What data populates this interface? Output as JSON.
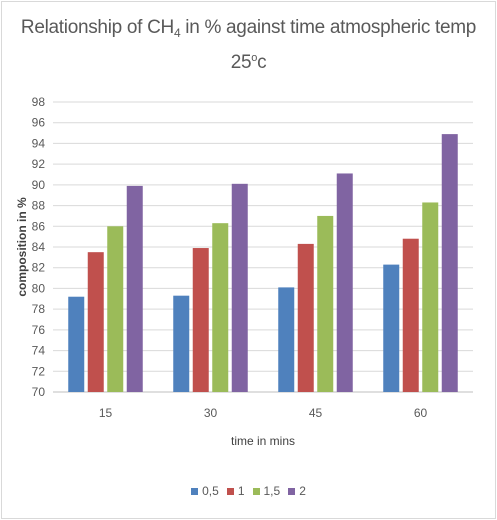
{
  "chart_data": {
    "type": "bar",
    "title_line1_pre": "Relationship of CH",
    "title_sub": "4",
    "title_line1_post": " in % against time atmospheric temp",
    "title_line2_pre": "25",
    "title_sup": "o",
    "title_line2_post": "c",
    "xlabel": "time in mins",
    "ylabel": "composition in %",
    "categories": [
      "15",
      "30",
      "45",
      "60"
    ],
    "ylim": [
      70,
      98
    ],
    "yticks": [
      70,
      72,
      74,
      76,
      78,
      80,
      82,
      84,
      86,
      88,
      90,
      92,
      94,
      96,
      98
    ],
    "grid": true,
    "legend_position": "bottom",
    "series": [
      {
        "name": "0,5",
        "color": "#4f81bd",
        "values": [
          79.2,
          79.3,
          80.1,
          82.3
        ]
      },
      {
        "name": "1",
        "color": "#c0504d",
        "values": [
          83.5,
          83.9,
          84.3,
          84.8
        ]
      },
      {
        "name": "1,5",
        "color": "#9bbb59",
        "values": [
          86.0,
          86.3,
          87.0,
          88.3
        ]
      },
      {
        "name": "2",
        "color": "#8064a2",
        "values": [
          89.9,
          90.1,
          91.1,
          94.9
        ]
      }
    ]
  }
}
